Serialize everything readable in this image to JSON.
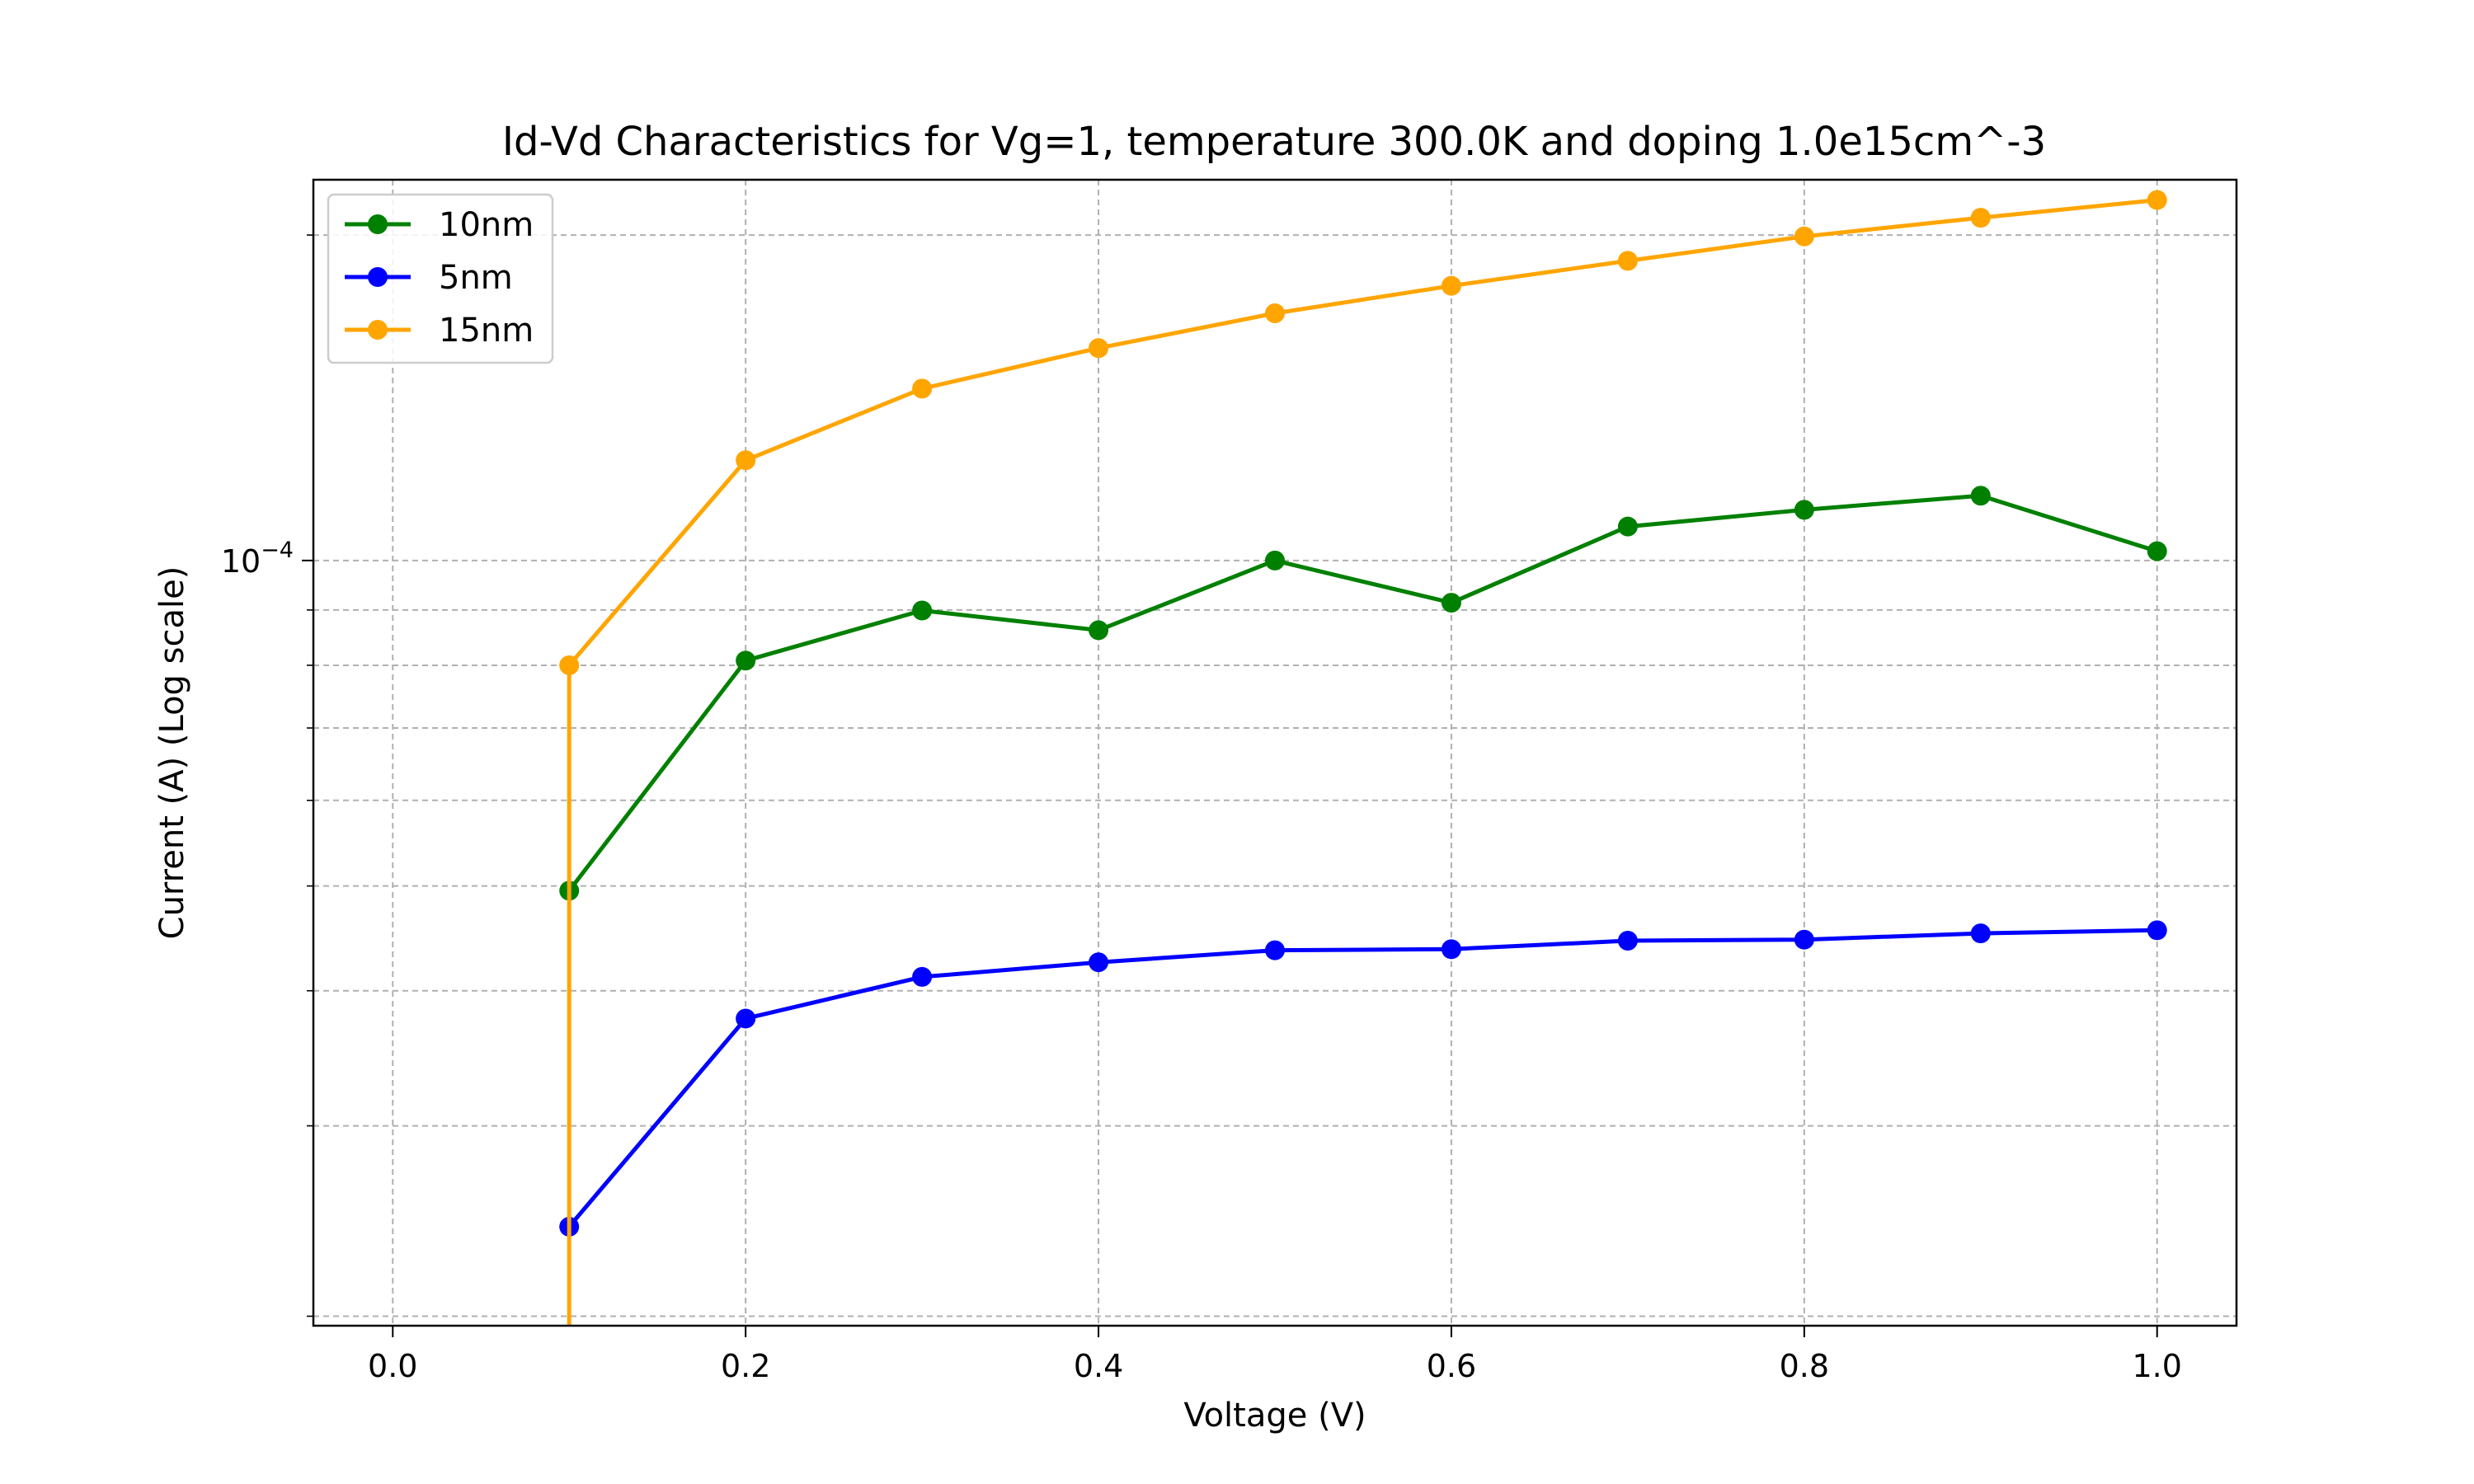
{
  "chart_data": {
    "type": "line",
    "title": "Id-Vd Characteristics for Vg=1, temperature 300.0K and doping 1.0e15cm^-3",
    "xlabel": "Voltage (V)",
    "ylabel": "Current (A) (Log scale)",
    "yscale": "log",
    "xlim": [
      -0.045,
      1.045
    ],
    "ylim": [
      1.96e-05,
      0.000225
    ],
    "xticks": [
      0.0,
      0.2,
      0.4,
      0.6,
      0.8,
      1.0
    ],
    "xtick_labels": [
      "0.0",
      "0.2",
      "0.4",
      "0.6",
      "0.8",
      "1.0"
    ],
    "ytick_major": [
      0.0001
    ],
    "ytick_major_label_base": "10",
    "ytick_major_label_exp": "−4",
    "ytick_minor": [
      2e-05,
      3e-05,
      4e-05,
      5e-05,
      6e-05,
      7e-05,
      8e-05,
      9e-05,
      0.0002
    ],
    "grid": true,
    "legend_position": "upper-left",
    "series": [
      {
        "name": "10nm",
        "color": "#008000",
        "x": [
          0.1,
          0.2,
          0.3,
          0.4,
          0.5,
          0.6,
          0.7,
          0.8,
          0.9,
          1.0
        ],
        "y": [
          4.95e-05,
          8.08e-05,
          8.99e-05,
          8.62e-05,
          0.0001,
          9.14e-05,
          0.0001075,
          0.0001114,
          0.0001148,
          0.000102
        ]
      },
      {
        "name": "5nm",
        "color": "#0000ff",
        "x": [
          0.1,
          0.2,
          0.3,
          0.4,
          0.5,
          0.6,
          0.7,
          0.8,
          0.9,
          1.0
        ],
        "y": [
          2.42e-05,
          3.77e-05,
          4.12e-05,
          4.25e-05,
          4.36e-05,
          4.37e-05,
          4.45e-05,
          4.46e-05,
          4.52e-05,
          4.55e-05
        ]
      },
      {
        "name": "15nm",
        "color": "#ffa500",
        "x": [
          0.1,
          0.1,
          0.2,
          0.3,
          0.4,
          0.5,
          0.6,
          0.7,
          0.8,
          0.9,
          1.0
        ],
        "y": [
          1.96e-05,
          8e-05,
          0.0001238,
          0.0001442,
          0.0001572,
          0.0001693,
          0.0001795,
          0.0001893,
          0.0001994,
          0.0002075,
          0.0002155
        ],
        "marker_skip_first": true
      }
    ]
  }
}
